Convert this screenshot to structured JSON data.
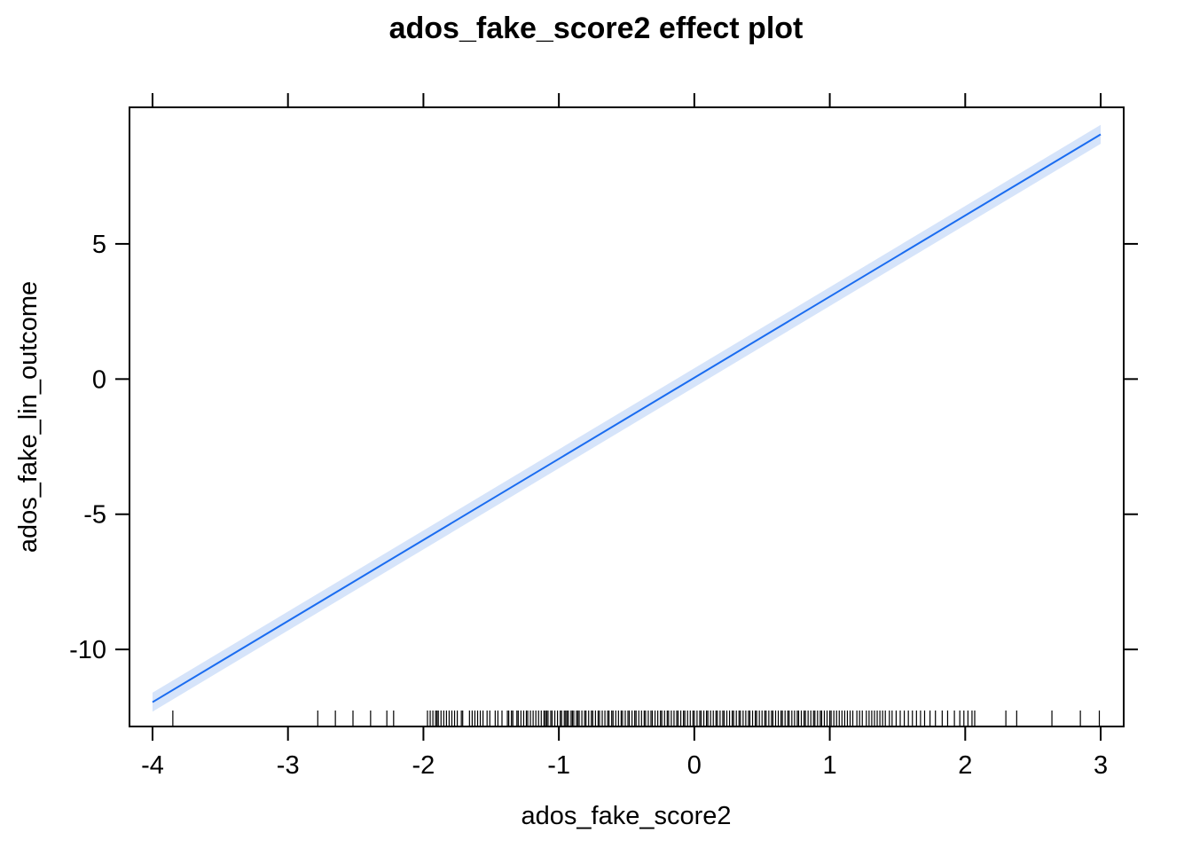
{
  "chart_data": {
    "type": "line",
    "title": "ados_fake_score2 effect plot",
    "xlabel": "ados_fake_score2",
    "ylabel": "ados_fake_lin_outcome",
    "xlim": [
      -4.17,
      3.17
    ],
    "ylim": [
      -12.85,
      10.05
    ],
    "x_ticks": [
      -4,
      -3,
      -2,
      -1,
      0,
      1,
      2,
      3
    ],
    "y_ticks": [
      -10,
      -5,
      0,
      5
    ],
    "x_tick_labels": [
      "-4",
      "-3",
      "-2",
      "-1",
      "0",
      "1",
      "2",
      "3"
    ],
    "y_tick_labels": [
      "-10",
      "-5",
      "0",
      "5"
    ],
    "grid": false,
    "series": [
      {
        "x": [
          -4,
          3
        ],
        "y": [
          -11.95,
          9.05
        ],
        "lower": [
          -12.3,
          8.7
        ],
        "upper": [
          -11.6,
          9.4
        ]
      }
    ],
    "rug_x": [
      -3.85,
      -2.78,
      -2.65,
      -2.52,
      -2.39,
      -2.27,
      -2.22,
      -1.97,
      -1.95,
      -1.93,
      -1.91,
      -1.9,
      -1.89,
      -1.87,
      -1.85,
      -1.83,
      -1.81,
      -1.79,
      -1.77,
      -1.75,
      -1.72,
      -1.71,
      -1.66,
      -1.64,
      -1.62,
      -1.6,
      -1.58,
      -1.56,
      -1.53,
      -1.51,
      -1.47,
      -1.45,
      -1.42,
      -1.38,
      -1.37,
      -1.35,
      -1.34,
      -1.31,
      -1.3,
      -1.28,
      -1.26,
      -1.24,
      -1.23,
      -1.21,
      -1.19,
      -1.17,
      -1.15,
      -1.13,
      -1.11,
      -1.1,
      -1.09,
      -1.08,
      -1.06,
      -1.05,
      -1.03,
      -1.01,
      -0.99,
      -0.98,
      -0.96,
      -0.95,
      -0.94,
      -0.93,
      -0.91,
      -0.9,
      -0.89,
      -0.87,
      -0.86,
      -0.85,
      -0.83,
      -0.81,
      -0.8,
      -0.78,
      -0.76,
      -0.75,
      -0.73,
      -0.71,
      -0.7,
      -0.68,
      -0.66,
      -0.64,
      -0.63,
      -0.61,
      -0.6,
      -0.58,
      -0.56,
      -0.54,
      -0.53,
      -0.51,
      -0.49,
      -0.48,
      -0.46,
      -0.44,
      -0.43,
      -0.41,
      -0.39,
      -0.37,
      -0.36,
      -0.34,
      -0.32,
      -0.31,
      -0.29,
      -0.27,
      -0.25,
      -0.24,
      -0.22,
      -0.2,
      -0.19,
      -0.17,
      -0.15,
      -0.13,
      -0.12,
      -0.1,
      -0.08,
      -0.07,
      -0.05,
      -0.03,
      -0.01,
      0.0,
      0.02,
      0.04,
      0.05,
      0.07,
      0.09,
      0.1,
      0.12,
      0.14,
      0.16,
      0.17,
      0.19,
      0.21,
      0.22,
      0.24,
      0.26,
      0.28,
      0.29,
      0.31,
      0.33,
      0.34,
      0.36,
      0.38,
      0.4,
      0.41,
      0.43,
      0.45,
      0.46,
      0.48,
      0.5,
      0.52,
      0.53,
      0.55,
      0.57,
      0.58,
      0.6,
      0.62,
      0.64,
      0.65,
      0.67,
      0.69,
      0.7,
      0.72,
      0.74,
      0.76,
      0.77,
      0.79,
      0.81,
      0.82,
      0.84,
      0.86,
      0.88,
      0.89,
      0.91,
      0.93,
      0.94,
      0.96,
      0.98,
      1.0,
      1.01,
      1.03,
      1.05,
      1.07,
      1.09,
      1.11,
      1.13,
      1.15,
      1.17,
      1.2,
      1.22,
      1.24,
      1.27,
      1.29,
      1.31,
      1.33,
      1.35,
      1.37,
      1.39,
      1.41,
      1.44,
      1.46,
      1.49,
      1.52,
      1.55,
      1.58,
      1.61,
      1.64,
      1.67,
      1.7,
      1.74,
      1.78,
      1.83,
      1.87,
      1.92,
      1.96,
      1.99,
      2.02,
      2.05,
      2.07,
      2.3,
      2.38,
      2.64,
      2.85,
      2.99
    ]
  }
}
